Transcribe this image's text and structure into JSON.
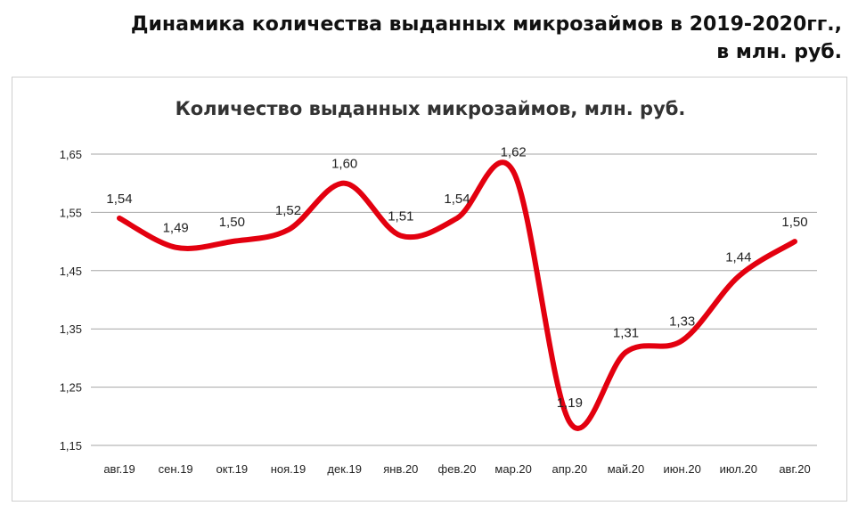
{
  "header": {
    "line1": "Динамика количества выданных микрозаймов в 2019-2020гг.,",
    "line2": "в млн. руб."
  },
  "chart_data": {
    "type": "line",
    "title": "Количество выданных микрозаймов, млн. руб.",
    "xlabel": "",
    "ylabel": "",
    "categories": [
      "авг.19",
      "сен.19",
      "окт.19",
      "ноя.19",
      "дек.19",
      "янв.20",
      "фев.20",
      "мар.20",
      "апр.20",
      "май.20",
      "июн.20",
      "июл.20",
      "авг.20"
    ],
    "series": [
      {
        "values": [
          1.54,
          1.49,
          1.5,
          1.52,
          1.6,
          1.51,
          1.54,
          1.62,
          1.19,
          1.31,
          1.33,
          1.44,
          1.5
        ]
      }
    ],
    "data_labels": [
      "1,54",
      "1,49",
      "1,50",
      "1,52",
      "1,60",
      "1,51",
      "1,54",
      "1,62",
      "1,19",
      "1,31",
      "1,33",
      "1,44",
      "1,50"
    ],
    "yticks": [
      1.15,
      1.25,
      1.35,
      1.45,
      1.55,
      1.65
    ],
    "ytick_labels": [
      "1,15",
      "1,25",
      "1,35",
      "1,45",
      "1,55",
      "1,65"
    ],
    "ylim": [
      1.15,
      1.65
    ],
    "grid": true,
    "legend": "none",
    "line_color": "#e3000f",
    "smooth": true
  }
}
